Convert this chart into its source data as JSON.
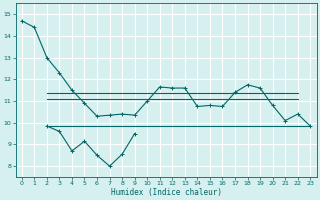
{
  "x_main": [
    0,
    1,
    2,
    3,
    4,
    5,
    6,
    7,
    8,
    9,
    10,
    11,
    12,
    13,
    14,
    15,
    16,
    17,
    18,
    19,
    20,
    21,
    22,
    23
  ],
  "y_main": [
    14.7,
    14.4,
    13.0,
    12.3,
    11.5,
    10.9,
    10.3,
    10.35,
    10.4,
    10.35,
    11.0,
    11.65,
    11.6,
    11.6,
    10.75,
    10.8,
    10.75,
    11.4,
    11.75,
    11.6,
    10.8,
    10.1,
    10.4,
    9.85
  ],
  "x_upper_flat": [
    2,
    3,
    4,
    5,
    6,
    7,
    8,
    9,
    10,
    11,
    12,
    13,
    14,
    15,
    16,
    17,
    18,
    19,
    20,
    21,
    22
  ],
  "y_upper_flat": [
    11.35,
    11.35,
    11.35,
    11.35,
    11.35,
    11.35,
    11.35,
    11.35,
    11.35,
    11.35,
    11.35,
    11.35,
    11.35,
    11.35,
    11.35,
    11.35,
    11.35,
    11.35,
    11.35,
    11.35,
    11.35
  ],
  "x_upper_flat2": [
    2,
    3,
    4,
    5,
    6,
    7,
    8,
    9,
    10,
    11,
    12,
    13,
    14,
    15,
    16,
    17,
    18,
    19,
    20,
    21,
    22
  ],
  "y_upper_flat2": [
    11.1,
    11.1,
    11.1,
    11.1,
    11.1,
    11.1,
    11.1,
    11.1,
    11.1,
    11.1,
    11.1,
    11.1,
    11.1,
    11.1,
    11.1,
    11.1,
    11.1,
    11.1,
    11.1,
    11.1,
    11.1
  ],
  "x_lower_flat": [
    2,
    3,
    4,
    5,
    6,
    7,
    8,
    9,
    10,
    11,
    12,
    13,
    14,
    15,
    16,
    17,
    18,
    19,
    20,
    21,
    22,
    23
  ],
  "y_lower_flat": [
    9.85,
    9.85,
    9.85,
    9.85,
    9.85,
    9.85,
    9.85,
    9.85,
    9.85,
    9.85,
    9.85,
    9.85,
    9.85,
    9.85,
    9.85,
    9.85,
    9.85,
    9.85,
    9.85,
    9.85,
    9.85,
    9.85
  ],
  "x_lower_var": [
    2,
    3,
    4,
    5,
    6,
    7,
    8,
    9
  ],
  "y_lower_var": [
    9.85,
    9.6,
    8.7,
    9.15,
    8.5,
    8.0,
    8.55,
    9.5
  ],
  "bg_color": "#d6f0f0",
  "grid_color": "#b8dede",
  "line_color": "#006666",
  "xlabel": "Humidex (Indice chaleur)",
  "ylim": [
    7.5,
    15.5
  ],
  "xlim": [
    -0.5,
    23.5
  ],
  "yticks": [
    8,
    9,
    10,
    11,
    12,
    13,
    14,
    15
  ],
  "xticks": [
    0,
    1,
    2,
    3,
    4,
    5,
    6,
    7,
    8,
    9,
    10,
    11,
    12,
    13,
    14,
    15,
    16,
    17,
    18,
    19,
    20,
    21,
    22,
    23
  ]
}
